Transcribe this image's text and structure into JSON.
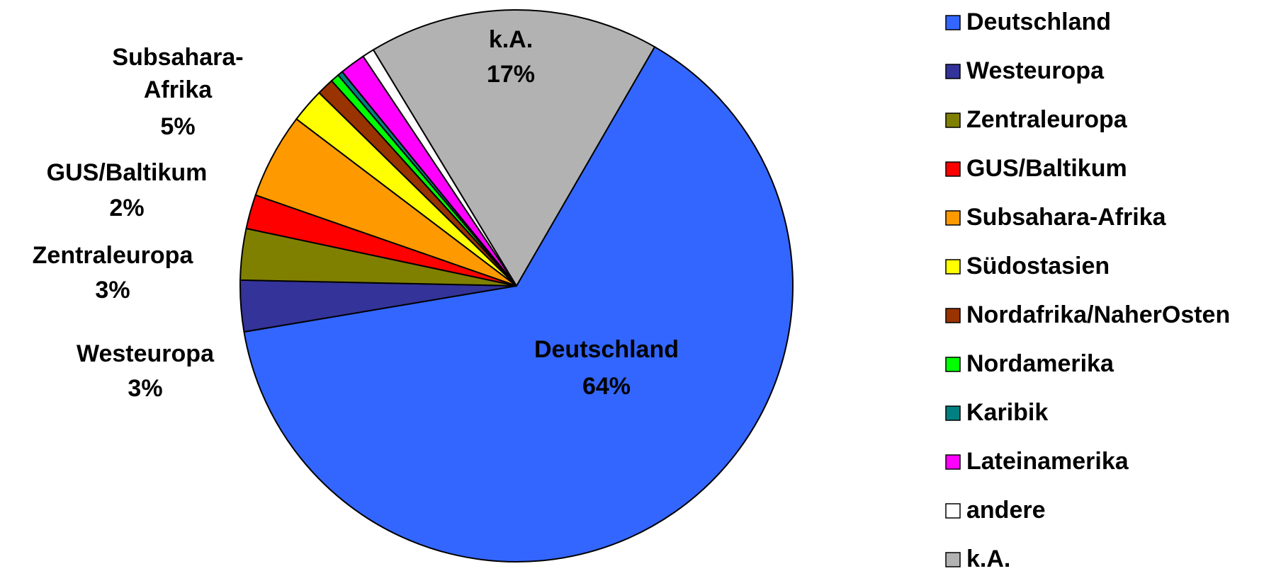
{
  "chart_data": {
    "type": "pie",
    "categories": [
      "Deutschland",
      "Westeuropa",
      "Zentraleuropa",
      "GUS/Baltikum",
      "Subsahara-Afrika",
      "Südostasien",
      "Nordafrika/NaherOsten",
      "Nordamerika",
      "Karibik",
      "Lateinamerika",
      "andere",
      "k.A."
    ],
    "values": [
      64,
      3,
      3,
      2,
      5,
      2,
      1,
      0.5,
      0.3,
      1.5,
      0.7,
      17
    ],
    "value_labels": [
      "64%",
      "3%",
      "3%",
      "2%",
      "5%",
      null,
      null,
      null,
      null,
      null,
      null,
      "17%"
    ],
    "colors": [
      "#3366ff",
      "#333399",
      "#808000",
      "#ff0000",
      "#ff9900",
      "#ffff00",
      "#993300",
      "#00ff00",
      "#008080",
      "#ff00ff",
      "#ffffff",
      "#b2b2b2"
    ],
    "legend": "right"
  }
}
